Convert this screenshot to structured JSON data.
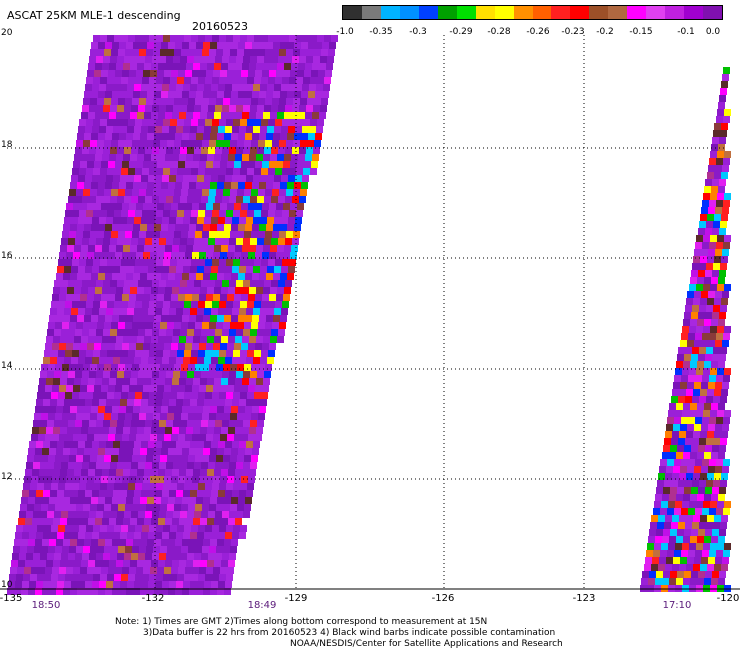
{
  "header": {
    "title": "ASCAT 25KM MLE-1 descending",
    "date": "20160523"
  },
  "color_scale": {
    "labels": [
      "-1.0",
      "-0.35",
      "-0.3",
      "-0.29",
      "-0.28",
      "-0.26",
      "-0.23",
      "-0.2",
      "-0.15",
      "-0.1",
      "0.0"
    ],
    "colors": [
      "#303030",
      "#7a7a7a",
      "#00b4ff",
      "#0090ff",
      "#0040ff",
      "#00a000",
      "#00e000",
      "#ffe000",
      "#ffff00",
      "#ff9000",
      "#ff6000",
      "#ff2020",
      "#ff0000",
      "#9c5028",
      "#b06840",
      "#ff00ff",
      "#e040f0",
      "#c020e0",
      "#a000d0",
      "#8010b0"
    ]
  },
  "map": {
    "lat_labels": [
      "20",
      "18",
      "16",
      "14",
      "12",
      "10"
    ],
    "lon_labels": [
      "-135",
      "-132",
      "-129",
      "-126",
      "-123",
      "-120"
    ],
    "grid": "dotted",
    "palette": [
      "#8a1ac8",
      "#9a20d8",
      "#7a14b8",
      "#a828e0",
      "#ff00ff",
      "#e020f0",
      "#c010e8",
      "#b03090",
      "#5a2a2a",
      "#8a3a3a",
      "#c07040",
      "#ff2020",
      "#ff0000",
      "#ff8000",
      "#ffff00",
      "#00c000",
      "#0030ff",
      "#00c8ff"
    ]
  },
  "times": [
    "18:50",
    "18:49",
    "17:10"
  ],
  "notes": [
    "Note: 1) Times are GMT 2)Times along bottom correspond to measurement at 15N",
    "3)Data buffer is 22 hrs from 20160523 4) Black wind barbs indicate possible contamination",
    "NOAA/NESDIS/Center for Satellite Applications and Research"
  ]
}
